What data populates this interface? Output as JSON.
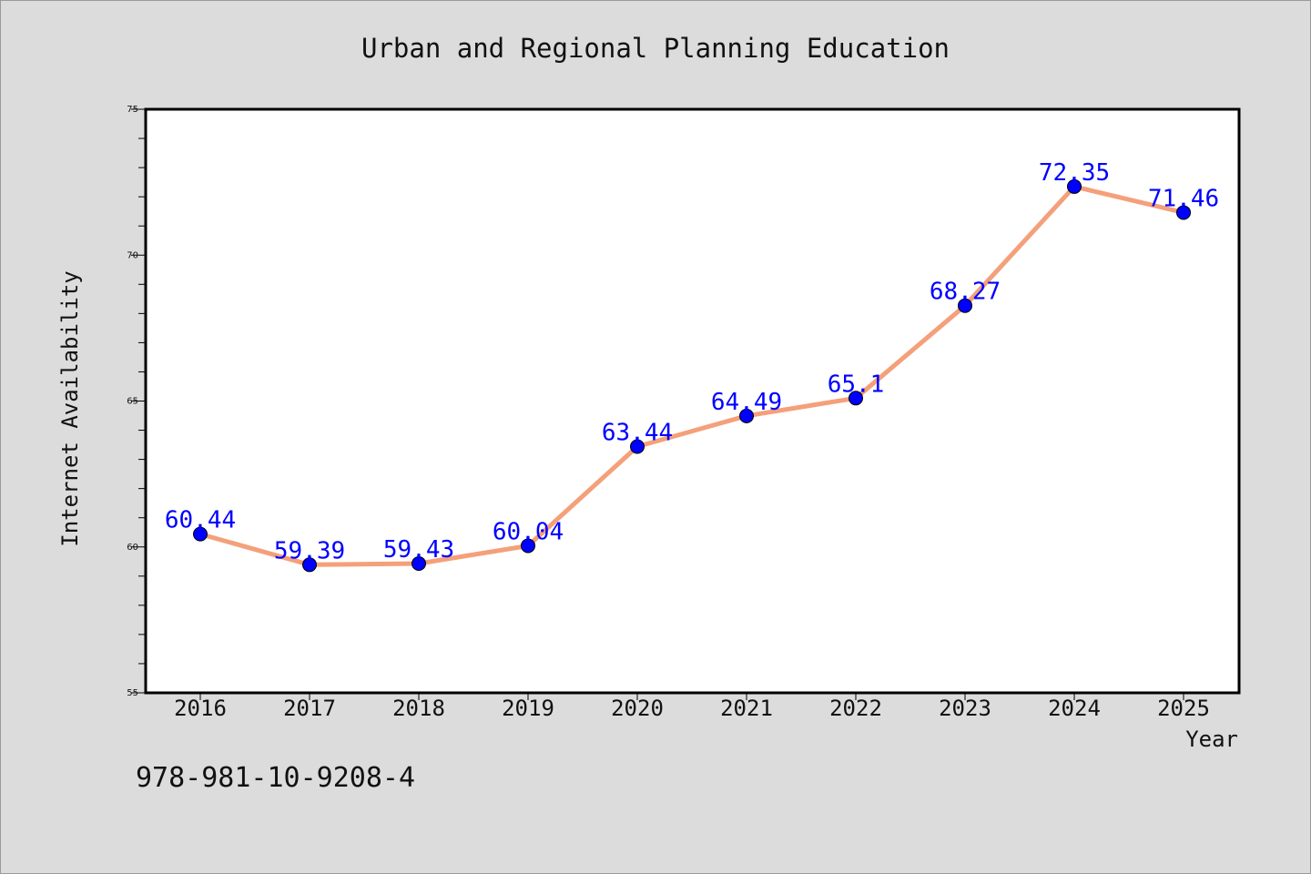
{
  "chart_data": {
    "type": "line",
    "title": "Urban and Regional Planning Education",
    "xlabel": "Year",
    "ylabel": "Internet Availability",
    "categories": [
      "2016",
      "2017",
      "2018",
      "2019",
      "2020",
      "2021",
      "2022",
      "2023",
      "2024",
      "2025"
    ],
    "series": [
      {
        "values": [
          60.44,
          59.39,
          59.43,
          60.04,
          63.44,
          64.49,
          65.1,
          68.27,
          72.35,
          71.46
        ],
        "data_labels": [
          "60.44",
          "59.39",
          "59.43",
          "60.04",
          "63.44",
          "64.49",
          "65.1",
          "68.27",
          "72.35",
          "71.46"
        ],
        "line_color": "#f4a07a",
        "marker_color": "#0000ff"
      }
    ],
    "ylim": [
      55,
      75
    ],
    "yticks": [
      "55",
      "60",
      "65",
      "70",
      "75"
    ],
    "grid": false,
    "legend": "none"
  },
  "annotation": "978-981-10-9208-4",
  "colors": {
    "background": "#dcdcdc",
    "plot_background": "#ffffff",
    "line": "#f4a07a",
    "marker": "#0000ff",
    "data_label": "#0000ff"
  }
}
